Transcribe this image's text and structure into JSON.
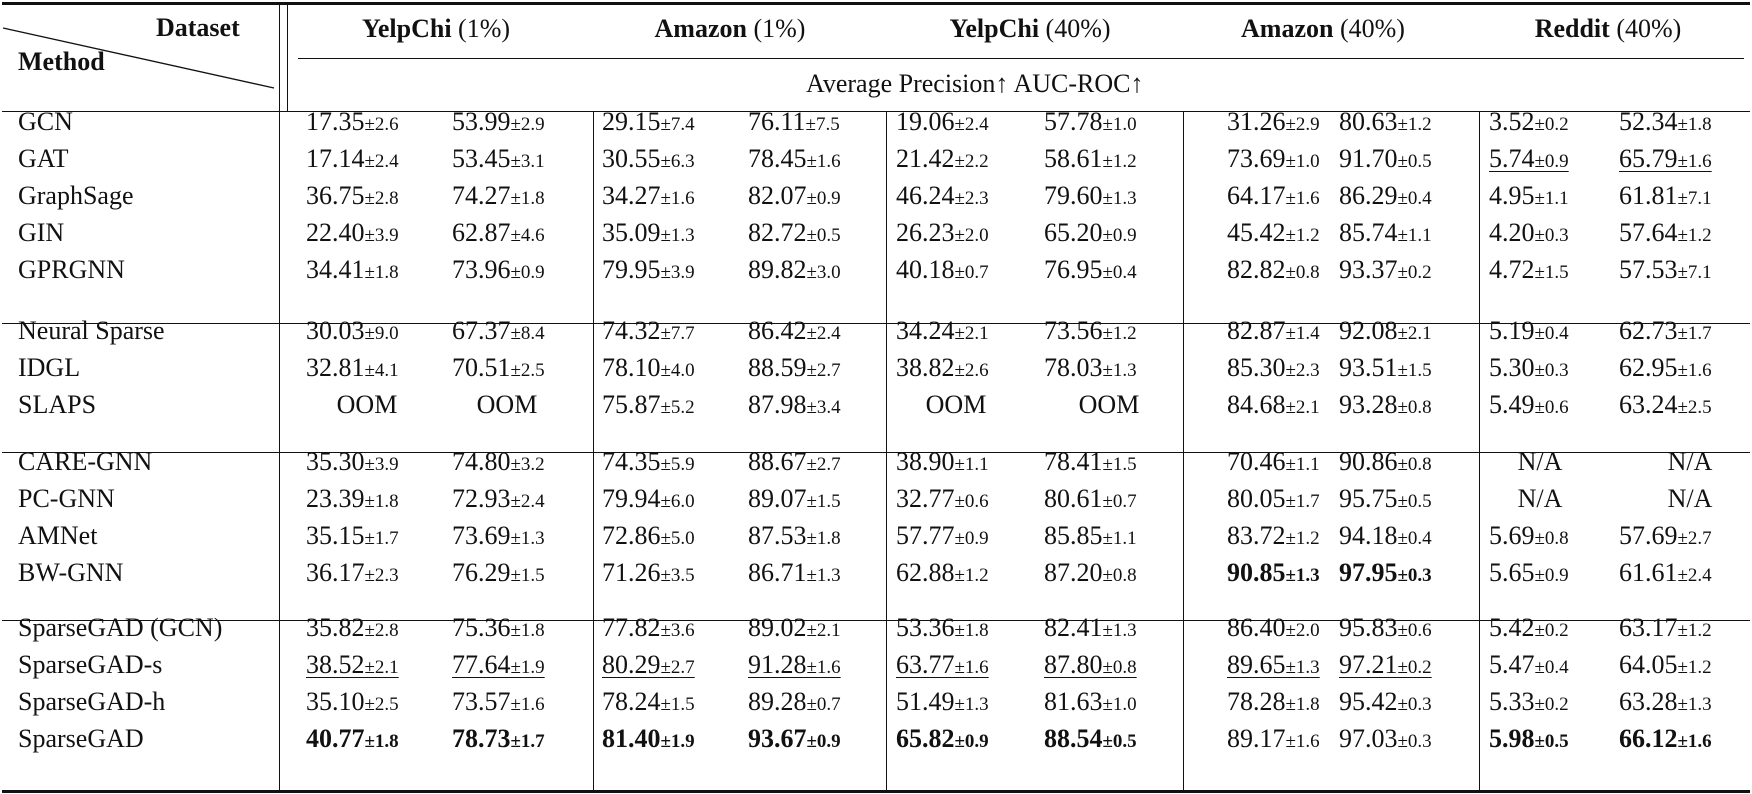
{
  "header": {
    "dataset_label": "Dataset",
    "method_label": "Method",
    "metrics_label": "Average Precision↑    AUC-ROC↑",
    "datasets": [
      {
        "name": "YelpChi",
        "suffix": " (1%)"
      },
      {
        "name": "Amazon",
        "suffix": " (1%)"
      },
      {
        "name": "YelpChi",
        "suffix": " (40%)"
      },
      {
        "name": "Amazon",
        "suffix": " (40%)"
      },
      {
        "name": "Reddit",
        "suffix": " (40%)"
      }
    ]
  },
  "groups": [
    {
      "rows": [
        {
          "method": "GCN",
          "cells": [
            [
              "17.35",
              "±2.6",
              "",
              ""
            ],
            [
              "53.99",
              "±2.9",
              "",
              ""
            ],
            [
              "29.15",
              "±7.4",
              "",
              ""
            ],
            [
              "76.11",
              "±7.5",
              "",
              ""
            ],
            [
              "19.06",
              "±2.4",
              "",
              ""
            ],
            [
              "57.78",
              "±1.0",
              "",
              ""
            ],
            [
              "31.26",
              "±2.9",
              "",
              ""
            ],
            [
              "80.63",
              "±1.2",
              "",
              ""
            ],
            [
              "3.52",
              "±0.2",
              "",
              ""
            ],
            [
              "52.34",
              "±1.8",
              "",
              ""
            ]
          ]
        },
        {
          "method": "GAT",
          "cells": [
            [
              "17.14",
              "±2.4",
              "",
              ""
            ],
            [
              "53.45",
              "±3.1",
              "",
              ""
            ],
            [
              "30.55",
              "±6.3",
              "",
              ""
            ],
            [
              "78.45",
              "±1.6",
              "",
              ""
            ],
            [
              "21.42",
              "±2.2",
              "",
              ""
            ],
            [
              "58.61",
              "±1.2",
              "",
              ""
            ],
            [
              "73.69",
              "±1.0",
              "",
              ""
            ],
            [
              "91.70",
              "±0.5",
              "",
              ""
            ],
            [
              "5.74",
              "±0.9",
              "",
              "u"
            ],
            [
              "65.79",
              "±1.6",
              "",
              "u"
            ]
          ]
        },
        {
          "method": "GraphSage",
          "cells": [
            [
              "36.75",
              "±2.8",
              "",
              ""
            ],
            [
              "74.27",
              "±1.8",
              "",
              ""
            ],
            [
              "34.27",
              "±1.6",
              "",
              ""
            ],
            [
              "82.07",
              "±0.9",
              "",
              ""
            ],
            [
              "46.24",
              "±2.3",
              "",
              ""
            ],
            [
              "79.60",
              "±1.3",
              "",
              ""
            ],
            [
              "64.17",
              "±1.6",
              "",
              ""
            ],
            [
              "86.29",
              "±0.4",
              "",
              ""
            ],
            [
              "4.95",
              "±1.1",
              "",
              ""
            ],
            [
              "61.81",
              "±7.1",
              "",
              ""
            ]
          ]
        },
        {
          "method": "GIN",
          "cells": [
            [
              "22.40",
              "±3.9",
              "",
              ""
            ],
            [
              "62.87",
              "±4.6",
              "",
              ""
            ],
            [
              "35.09",
              "±1.3",
              "",
              ""
            ],
            [
              "82.72",
              "±0.5",
              "",
              ""
            ],
            [
              "26.23",
              "±2.0",
              "",
              ""
            ],
            [
              "65.20",
              "±0.9",
              "",
              ""
            ],
            [
              "45.42",
              "±1.2",
              "",
              ""
            ],
            [
              "85.74",
              "±1.1",
              "",
              ""
            ],
            [
              "4.20",
              "±0.3",
              "",
              ""
            ],
            [
              "57.64",
              "±1.2",
              "",
              ""
            ]
          ]
        },
        {
          "method": "GPRGNN",
          "cells": [
            [
              "34.41",
              "±1.8",
              "",
              ""
            ],
            [
              "73.96",
              "±0.9",
              "",
              ""
            ],
            [
              "79.95",
              "±3.9",
              "",
              ""
            ],
            [
              "89.82",
              "±3.0",
              "",
              ""
            ],
            [
              "40.18",
              "±0.7",
              "",
              ""
            ],
            [
              "76.95",
              "±0.4",
              "",
              ""
            ],
            [
              "82.82",
              "±0.8",
              "",
              ""
            ],
            [
              "93.37",
              "±0.2",
              "",
              ""
            ],
            [
              "4.72",
              "±1.5",
              "",
              ""
            ],
            [
              "57.53",
              "±7.1",
              "",
              ""
            ]
          ]
        }
      ]
    },
    {
      "rows": [
        {
          "method": "Neural Sparse",
          "cells": [
            [
              "30.03",
              "±9.0",
              "",
              ""
            ],
            [
              "67.37",
              "±8.4",
              "",
              ""
            ],
            [
              "74.32",
              "±7.7",
              "",
              ""
            ],
            [
              "86.42",
              "±2.4",
              "",
              ""
            ],
            [
              "34.24",
              "±2.1",
              "",
              ""
            ],
            [
              "73.56",
              "±1.2",
              "",
              ""
            ],
            [
              "82.87",
              "±1.4",
              "",
              ""
            ],
            [
              "92.08",
              "±2.1",
              "",
              ""
            ],
            [
              "5.19",
              "±0.4",
              "",
              ""
            ],
            [
              "62.73",
              "±1.7",
              "",
              ""
            ]
          ]
        },
        {
          "method": "IDGL",
          "cells": [
            [
              "32.81",
              "±4.1",
              "",
              ""
            ],
            [
              "70.51",
              "±2.5",
              "",
              ""
            ],
            [
              "78.10",
              "±4.0",
              "",
              ""
            ],
            [
              "88.59",
              "±2.7",
              "",
              ""
            ],
            [
              "38.82",
              "±2.6",
              "",
              ""
            ],
            [
              "78.03",
              "±1.3",
              "",
              ""
            ],
            [
              "85.30",
              "±2.3",
              "",
              ""
            ],
            [
              "93.51",
              "±1.5",
              "",
              ""
            ],
            [
              "5.30",
              "±0.3",
              "",
              ""
            ],
            [
              "62.95",
              "±1.6",
              "",
              ""
            ]
          ]
        },
        {
          "method": "SLAPS",
          "cells": [
            [
              "OOM",
              "",
              "",
              ""
            ],
            [
              "OOM",
              "",
              "",
              ""
            ],
            [
              "75.87",
              "±5.2",
              "",
              ""
            ],
            [
              "87.98",
              "±3.4",
              "",
              ""
            ],
            [
              "OOM",
              "",
              "",
              ""
            ],
            [
              "OOM",
              "",
              "",
              ""
            ],
            [
              "84.68",
              "±2.1",
              "",
              ""
            ],
            [
              "93.28",
              "±0.8",
              "",
              ""
            ],
            [
              "5.49",
              "±0.6",
              "",
              ""
            ],
            [
              "63.24",
              "±2.5",
              "",
              ""
            ]
          ]
        }
      ]
    },
    {
      "rows": [
        {
          "method": "CARE-GNN",
          "cells": [
            [
              "35.30",
              "±3.9",
              "",
              ""
            ],
            [
              "74.80",
              "±3.2",
              "",
              ""
            ],
            [
              "74.35",
              "±5.9",
              "",
              ""
            ],
            [
              "88.67",
              "±2.7",
              "",
              ""
            ],
            [
              "38.90",
              "±1.1",
              "",
              ""
            ],
            [
              "78.41",
              "±1.5",
              "",
              ""
            ],
            [
              "70.46",
              "±1.1",
              "",
              ""
            ],
            [
              "90.86",
              "±0.8",
              "",
              ""
            ],
            [
              "N/A",
              "",
              "",
              ""
            ],
            [
              "N/A",
              "",
              "",
              ""
            ]
          ]
        },
        {
          "method": "PC-GNN",
          "cells": [
            [
              "23.39",
              "±1.8",
              "",
              ""
            ],
            [
              "72.93",
              "±2.4",
              "",
              ""
            ],
            [
              "79.94",
              "±6.0",
              "",
              ""
            ],
            [
              "89.07",
              "±1.5",
              "",
              ""
            ],
            [
              "32.77",
              "±0.6",
              "",
              ""
            ],
            [
              "80.61",
              "±0.7",
              "",
              ""
            ],
            [
              "80.05",
              "±1.7",
              "",
              ""
            ],
            [
              "95.75",
              "±0.5",
              "",
              ""
            ],
            [
              "N/A",
              "",
              "",
              ""
            ],
            [
              "N/A",
              "",
              "",
              ""
            ]
          ]
        },
        {
          "method": "AMNet",
          "cells": [
            [
              "35.15",
              "±1.7",
              "",
              ""
            ],
            [
              "73.69",
              "±1.3",
              "",
              ""
            ],
            [
              "72.86",
              "±5.0",
              "",
              ""
            ],
            [
              "87.53",
              "±1.8",
              "",
              ""
            ],
            [
              "57.77",
              "±0.9",
              "",
              ""
            ],
            [
              "85.85",
              "±1.1",
              "",
              ""
            ],
            [
              "83.72",
              "±1.2",
              "",
              ""
            ],
            [
              "94.18",
              "±0.4",
              "",
              ""
            ],
            [
              "5.69",
              "±0.8",
              "",
              ""
            ],
            [
              "57.69",
              "±2.7",
              "",
              ""
            ]
          ]
        },
        {
          "method": "BW-GNN",
          "cells": [
            [
              "36.17",
              "±2.3",
              "",
              ""
            ],
            [
              "76.29",
              "±1.5",
              "",
              ""
            ],
            [
              "71.26",
              "±3.5",
              "",
              ""
            ],
            [
              "86.71",
              "±1.3",
              "",
              ""
            ],
            [
              "62.88",
              "±1.2",
              "",
              ""
            ],
            [
              "87.20",
              "±0.8",
              "",
              ""
            ],
            [
              "90.85",
              "±1.3",
              "b",
              ""
            ],
            [
              "97.95",
              "±0.3",
              "b",
              ""
            ],
            [
              "5.65",
              "±0.9",
              "",
              ""
            ],
            [
              "61.61",
              "±2.4",
              "",
              ""
            ]
          ]
        }
      ]
    },
    {
      "rows": [
        {
          "method": "SparseGAD (GCN)",
          "cells": [
            [
              "35.82",
              "±2.8",
              "",
              ""
            ],
            [
              "75.36",
              "±1.8",
              "",
              ""
            ],
            [
              "77.82",
              "±3.6",
              "",
              ""
            ],
            [
              "89.02",
              "±2.1",
              "",
              ""
            ],
            [
              "53.36",
              "±1.8",
              "",
              ""
            ],
            [
              "82.41",
              "±1.3",
              "",
              ""
            ],
            [
              "86.40",
              "±2.0",
              "",
              ""
            ],
            [
              "95.83",
              "±0.6",
              "",
              ""
            ],
            [
              "5.42",
              "±0.2",
              "",
              ""
            ],
            [
              "63.17",
              "±1.2",
              "",
              ""
            ]
          ]
        },
        {
          "method": "SparseGAD-s",
          "cells": [
            [
              "38.52",
              "±2.1",
              "",
              "u"
            ],
            [
              "77.64",
              "±1.9",
              "",
              "u"
            ],
            [
              "80.29",
              "±2.7",
              "",
              "u"
            ],
            [
              "91.28",
              "±1.6",
              "",
              "u"
            ],
            [
              "63.77",
              "±1.6",
              "",
              "u"
            ],
            [
              "87.80",
              "±0.8",
              "",
              "u"
            ],
            [
              "89.65",
              "±1.3",
              "",
              "u"
            ],
            [
              "97.21",
              "±0.2",
              "",
              "u"
            ],
            [
              "5.47",
              "±0.4",
              "",
              ""
            ],
            [
              "64.05",
              "±1.2",
              "",
              ""
            ]
          ]
        },
        {
          "method": "SparseGAD-h",
          "cells": [
            [
              "35.10",
              "±2.5",
              "",
              ""
            ],
            [
              "73.57",
              "±1.6",
              "",
              ""
            ],
            [
              "78.24",
              "±1.5",
              "",
              ""
            ],
            [
              "89.28",
              "±0.7",
              "",
              ""
            ],
            [
              "51.49",
              "±1.3",
              "",
              ""
            ],
            [
              "81.63",
              "±1.0",
              "",
              ""
            ],
            [
              "78.28",
              "±1.8",
              "",
              ""
            ],
            [
              "95.42",
              "±0.3",
              "",
              ""
            ],
            [
              "5.33",
              "±0.2",
              "",
              ""
            ],
            [
              "63.28",
              "±1.3",
              "",
              ""
            ]
          ]
        },
        {
          "method": "SparseGAD",
          "cells": [
            [
              "40.77",
              "±1.8",
              "b",
              ""
            ],
            [
              "78.73",
              "±1.7",
              "b",
              ""
            ],
            [
              "81.40",
              "±1.9",
              "b",
              ""
            ],
            [
              "93.67",
              "±0.9",
              "b",
              ""
            ],
            [
              "65.82",
              "±0.9",
              "b",
              ""
            ],
            [
              "88.54",
              "±0.5",
              "b",
              ""
            ],
            [
              "89.17",
              "±1.6",
              "",
              ""
            ],
            [
              "97.03",
              "±0.3",
              "",
              ""
            ],
            [
              "5.98",
              "±0.5",
              "b",
              ""
            ],
            [
              "66.12",
              "±1.6",
              "b",
              ""
            ]
          ]
        }
      ]
    }
  ]
}
